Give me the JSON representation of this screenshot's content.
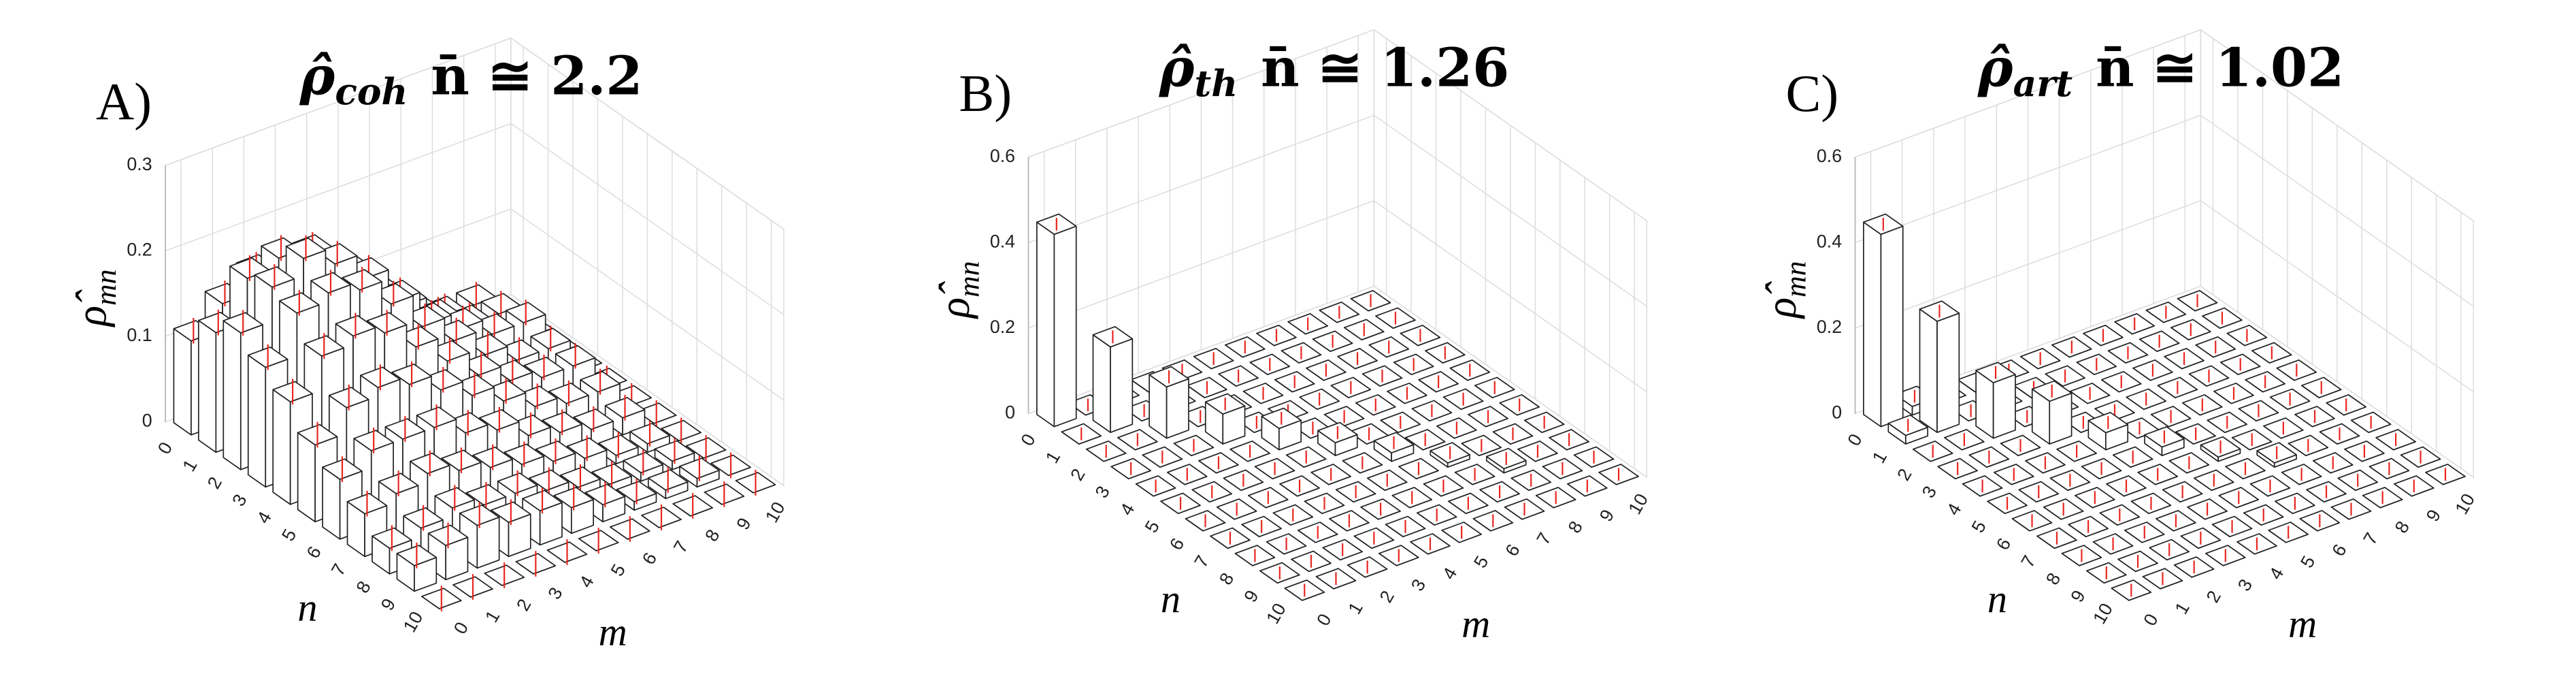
{
  "chart_data": [
    {
      "type": "bar3d",
      "label": "A)",
      "title": "ρ̂",
      "title_sub": "coh",
      "title_rest": "n̄ ≅ 2.2",
      "xlabel": "n",
      "ylabel": "m",
      "zlabel": "ρ̂",
      "zlabel_sub": "mn",
      "nlim": [
        -0.5,
        10.5
      ],
      "mlim": [
        -0.5,
        10.5
      ],
      "zlim": [
        0,
        0.3
      ],
      "nticks": [
        0,
        1,
        2,
        3,
        4,
        5,
        6,
        7,
        8,
        9,
        10
      ],
      "mticks": [
        0,
        1,
        2,
        3,
        4,
        5,
        6,
        7,
        8,
        9,
        10
      ],
      "zticks": [
        0,
        0.1,
        0.2,
        0.3
      ],
      "error": 0.015,
      "error_color": "#e8251f",
      "values": [
        [
          0.11,
          0.14,
          0.16,
          0.14,
          0.12,
          0.09,
          0.07,
          0.05,
          0.03,
          0.03,
          0
        ],
        [
          0.14,
          0.19,
          0.2,
          0.19,
          0.16,
          0.12,
          0.09,
          0.06,
          0.04,
          0.04,
          0
        ],
        [
          0.16,
          0.2,
          0.22,
          0.2,
          0.17,
          0.13,
          0.09,
          0.07,
          0.05,
          0.05,
          0
        ],
        [
          0.14,
          0.19,
          0.2,
          0.19,
          0.16,
          0.12,
          0.09,
          0.06,
          0.04,
          0.04,
          0
        ],
        [
          0.12,
          0.16,
          0.17,
          0.16,
          0.13,
          0.1,
          0.07,
          0.05,
          0.04,
          0.04,
          0
        ],
        [
          0.09,
          0.12,
          0.13,
          0.12,
          0.1,
          0.08,
          0.06,
          0.04,
          0.03,
          0.03,
          0
        ],
        [
          0.07,
          0.09,
          0.09,
          0.09,
          0.07,
          0.06,
          0.04,
          0.03,
          0.02,
          0.02,
          0
        ],
        [
          0.05,
          0.06,
          0.07,
          0.06,
          0.05,
          0.04,
          0.03,
          0.02,
          0.01,
          0.01,
          0
        ],
        [
          0.03,
          0.04,
          0.05,
          0.04,
          0.04,
          0.03,
          0.02,
          0.01,
          0.01,
          0.01,
          0
        ],
        [
          0.03,
          0.04,
          0.05,
          0.04,
          0.04,
          0.03,
          0.02,
          0.01,
          0.01,
          0.01,
          0
        ],
        [
          0,
          0,
          0,
          0,
          0,
          0,
          0,
          0,
          0,
          0,
          0
        ]
      ]
    },
    {
      "type": "bar3d",
      "label": "B)",
      "title": "ρ̂",
      "title_sub": "th",
      "title_rest": "n̄ ≅ 1.26",
      "xlabel": "n",
      "ylabel": "m",
      "zlabel": "ρ̂",
      "zlabel_sub": "mn",
      "nlim": [
        -0.5,
        10.5
      ],
      "mlim": [
        -0.5,
        10.5
      ],
      "zlim": [
        0,
        0.6
      ],
      "nticks": [
        0,
        1,
        2,
        3,
        4,
        5,
        6,
        7,
        8,
        9,
        10
      ],
      "mticks": [
        0,
        1,
        2,
        3,
        4,
        5,
        6,
        7,
        8,
        9,
        10
      ],
      "zticks": [
        0,
        0.2,
        0.4,
        0.6
      ],
      "error": 0.015,
      "error_color": "#e8251f",
      "values": [
        [
          0.45,
          0,
          0,
          0,
          0,
          0,
          0,
          0,
          0,
          0,
          0
        ],
        [
          0,
          0.2,
          0,
          0,
          0,
          0,
          0,
          0,
          0,
          0,
          0
        ],
        [
          0,
          0,
          0.12,
          0,
          0,
          0,
          0,
          0,
          0,
          0,
          0
        ],
        [
          0,
          0,
          0,
          0.07,
          0,
          0,
          0,
          0,
          0,
          0,
          0
        ],
        [
          0,
          0,
          0,
          0,
          0.05,
          0,
          0,
          0,
          0,
          0,
          0
        ],
        [
          0,
          0,
          0,
          0,
          0,
          0.03,
          0,
          0,
          0,
          0,
          0
        ],
        [
          0,
          0,
          0,
          0,
          0,
          0,
          0.02,
          0,
          0,
          0,
          0
        ],
        [
          0,
          0,
          0,
          0,
          0,
          0,
          0,
          0.01,
          0,
          0,
          0
        ],
        [
          0,
          0,
          0,
          0,
          0,
          0,
          0,
          0,
          0.01,
          0,
          0
        ],
        [
          0,
          0,
          0,
          0,
          0,
          0,
          0,
          0,
          0,
          0,
          0
        ],
        [
          0,
          0,
          0,
          0,
          0,
          0,
          0,
          0,
          0,
          0,
          0
        ]
      ]
    },
    {
      "type": "bar3d",
      "label": "C)",
      "title": "ρ̂",
      "title_sub": "art",
      "title_rest": "n̄ ≅ 1.02",
      "xlabel": "n",
      "ylabel": "m",
      "zlabel": "ρ̂",
      "zlabel_sub": "mn",
      "nlim": [
        -0.5,
        10.5
      ],
      "mlim": [
        -0.5,
        10.5
      ],
      "zlim": [
        0,
        0.6
      ],
      "nticks": [
        0,
        1,
        2,
        3,
        4,
        5,
        6,
        7,
        8,
        9,
        10
      ],
      "mticks": [
        0,
        1,
        2,
        3,
        4,
        5,
        6,
        7,
        8,
        9,
        10
      ],
      "zticks": [
        0,
        0.2,
        0.4,
        0.6
      ],
      "error": 0.015,
      "error_color": "#e8251f",
      "values": [
        [
          0.45,
          0.02,
          0,
          0,
          0,
          0,
          0,
          0,
          0,
          0,
          0
        ],
        [
          0.02,
          0.26,
          0,
          0,
          0,
          0,
          0,
          0,
          0,
          0,
          0
        ],
        [
          0,
          0,
          0.13,
          0,
          0,
          0,
          0,
          0,
          0,
          0,
          0
        ],
        [
          0,
          0,
          0,
          0.1,
          0,
          0,
          0,
          0,
          0,
          0,
          0
        ],
        [
          0,
          0,
          0,
          0,
          0.04,
          0,
          0,
          0,
          0,
          0,
          0
        ],
        [
          0,
          0,
          0,
          0,
          0,
          0.02,
          0,
          0,
          0,
          0,
          0
        ],
        [
          0,
          0,
          0,
          0,
          0,
          0,
          0.01,
          0,
          0,
          0,
          0
        ],
        [
          0,
          0,
          0,
          0,
          0,
          0,
          0,
          0.01,
          0,
          0,
          0
        ],
        [
          0,
          0,
          0,
          0,
          0,
          0,
          0,
          0,
          0,
          0,
          0
        ],
        [
          0,
          0,
          0,
          0,
          0,
          0,
          0,
          0,
          0,
          0,
          0
        ],
        [
          0,
          0,
          0,
          0,
          0,
          0,
          0,
          0,
          0,
          0,
          0
        ]
      ]
    }
  ]
}
